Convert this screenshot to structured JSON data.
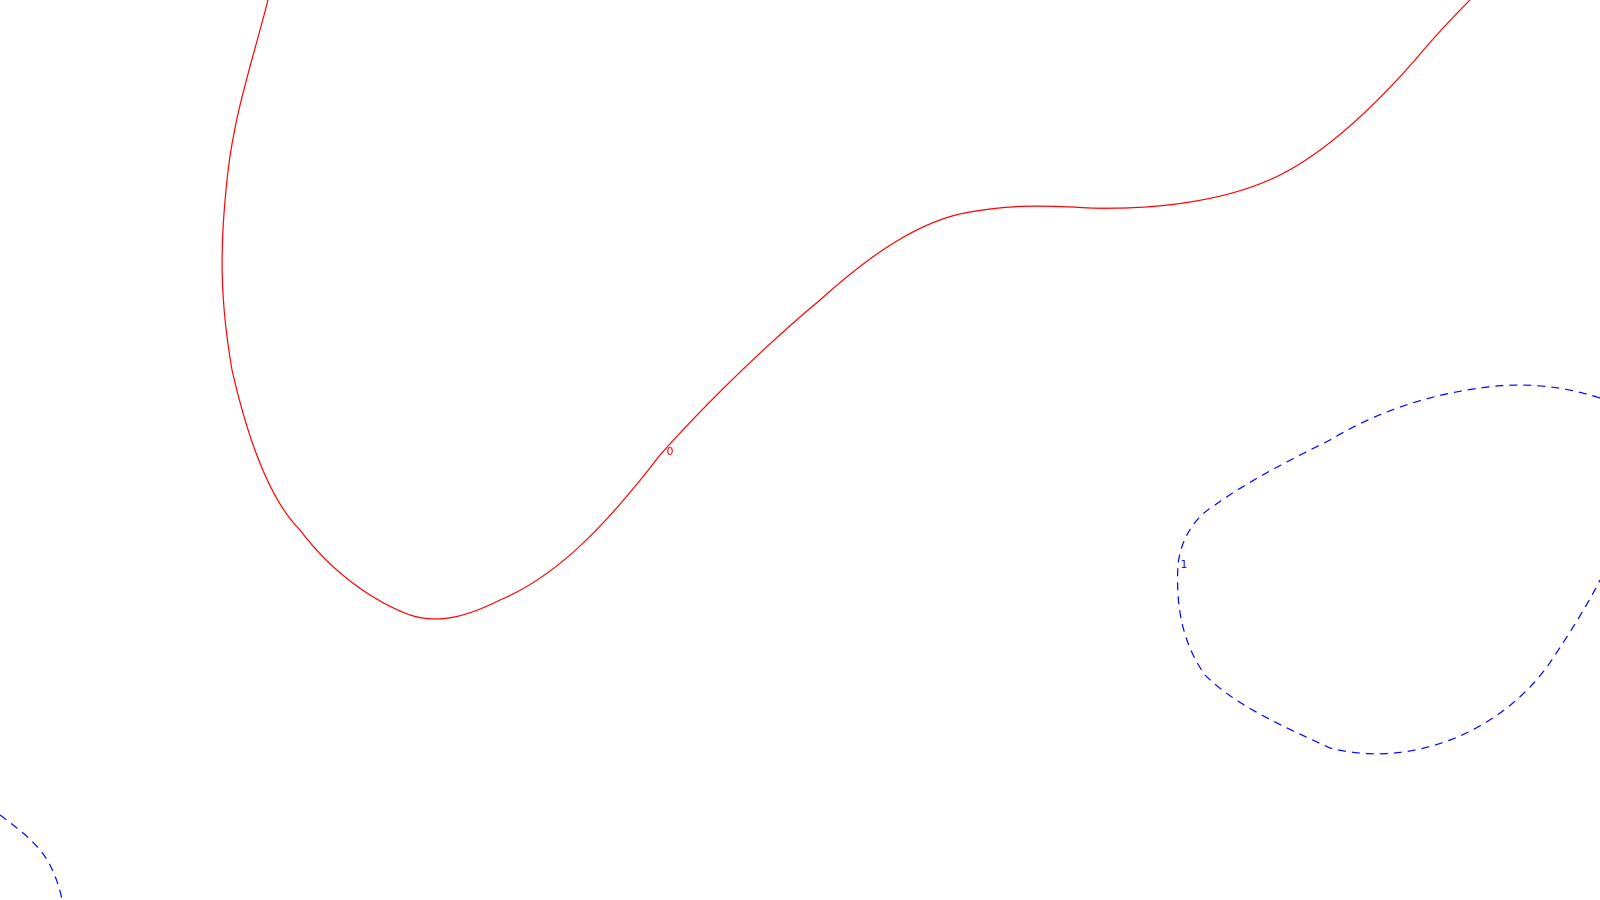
{
  "contours": [
    {
      "id": "contour-zero",
      "level_label": "0",
      "color": "#ff0000",
      "line_style": "solid"
    },
    {
      "id": "contour-one-loop",
      "level_label": "1",
      "color": "#0000ff",
      "line_style": "dashed"
    },
    {
      "id": "contour-one-corner",
      "level_label": "",
      "color": "#0000ff",
      "line_style": "dashed"
    }
  ]
}
